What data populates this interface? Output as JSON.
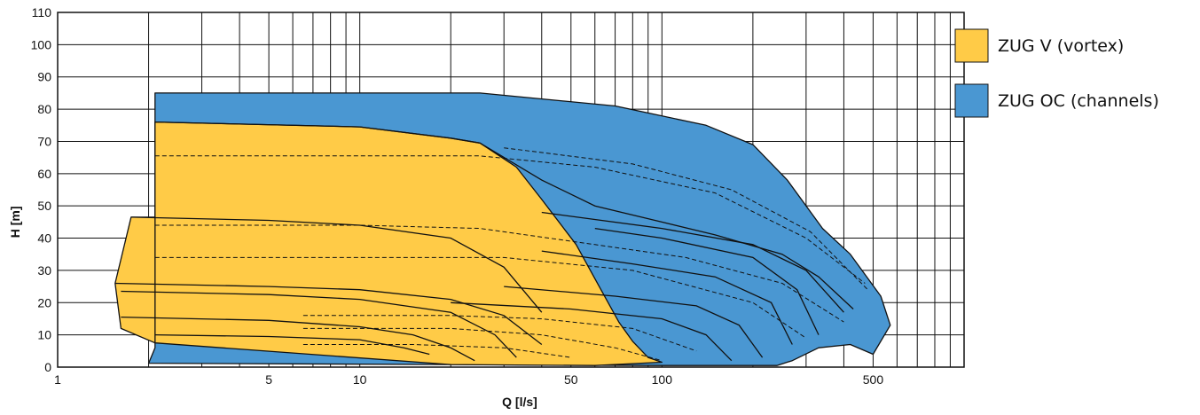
{
  "chart_data": {
    "type": "area",
    "title": "",
    "xlabel": "Q [l/s]",
    "ylabel": "H [m]",
    "x_scale": "log",
    "xlim": [
      1,
      1000
    ],
    "ylim": [
      0,
      110
    ],
    "x_tick_labels": [
      "1",
      "5",
      "10",
      "50",
      "100",
      "500"
    ],
    "x_tick_values": [
      1,
      5,
      10,
      50,
      100,
      500
    ],
    "y_ticks": [
      0,
      10,
      20,
      30,
      40,
      50,
      60,
      70,
      80,
      90,
      100,
      110
    ],
    "grid": true,
    "legend_position": "right",
    "colors": {
      "vortex": "#ffcb47",
      "channels": "#4a97d2",
      "outline": "#111111"
    },
    "series": [
      {
        "name": "ZUG OC (channels)",
        "color": "#4a97d2",
        "regions": [
          [
            [
              2.1,
              85
            ],
            [
              25,
              85
            ],
            [
              70,
              81
            ],
            [
              140,
              75
            ],
            [
              200,
              69
            ],
            [
              260,
              58
            ],
            [
              340,
              43
            ],
            [
              420,
              35
            ],
            [
              530,
              22
            ],
            [
              570,
              13
            ],
            [
              500,
              4
            ],
            [
              420,
              7
            ],
            [
              330,
              6
            ],
            [
              270,
              2
            ],
            [
              240,
              0.5
            ],
            [
              100,
              0.5
            ],
            [
              2,
              1.2
            ],
            [
              2.1,
              6
            ]
          ]
        ]
      },
      {
        "name": "ZUG V (vortex)",
        "color": "#ffcb47",
        "regions": [
          [
            [
              2.1,
              76
            ],
            [
              10,
              74.5
            ],
            [
              20,
              71
            ],
            [
              25,
              69.5
            ],
            [
              33,
              62
            ],
            [
              40,
              52
            ],
            [
              52,
              38
            ],
            [
              62,
              25
            ],
            [
              72,
              14
            ],
            [
              80,
              8
            ],
            [
              90,
              3
            ],
            [
              100,
              1.5
            ],
            [
              60,
              0.5
            ],
            [
              20,
              0.8
            ],
            [
              2.1,
              7.5
            ]
          ],
          [
            [
              1.55,
              26
            ],
            [
              1.75,
              46.5
            ],
            [
              2.1,
              46.5
            ],
            [
              2.1,
              7.5
            ],
            [
              1.62,
              12
            ]
          ]
        ]
      }
    ],
    "curves_solid": [
      [
        [
          2.1,
          76
        ],
        [
          10,
          74.5
        ],
        [
          20,
          71
        ],
        [
          25,
          69.5
        ]
      ],
      [
        [
          1.75,
          46.5
        ],
        [
          5,
          45.5
        ],
        [
          10,
          44
        ],
        [
          20,
          40
        ],
        [
          30,
          31
        ],
        [
          40,
          17
        ]
      ],
      [
        [
          1.55,
          26
        ],
        [
          5,
          25
        ],
        [
          10,
          24
        ],
        [
          20,
          21
        ],
        [
          30,
          16
        ],
        [
          40,
          7
        ]
      ],
      [
        [
          1.62,
          23.5
        ],
        [
          5,
          22.5
        ],
        [
          10,
          21
        ],
        [
          20,
          17
        ],
        [
          28,
          10
        ],
        [
          33,
          3
        ]
      ],
      [
        [
          1.62,
          15.5
        ],
        [
          5,
          14.5
        ],
        [
          10,
          12.5
        ],
        [
          15,
          10
        ],
        [
          20,
          6
        ],
        [
          24,
          2
        ]
      ],
      [
        [
          2.1,
          10
        ],
        [
          5,
          9.5
        ],
        [
          10,
          8.5
        ],
        [
          14,
          6
        ],
        [
          17,
          4
        ]
      ],
      [
        [
          25,
          69.5
        ],
        [
          40,
          58
        ],
        [
          60,
          50
        ],
        [
          100,
          45
        ],
        [
          150,
          41
        ],
        [
          250,
          35
        ],
        [
          330,
          28
        ],
        [
          430,
          18
        ]
      ],
      [
        [
          40,
          48
        ],
        [
          100,
          43
        ],
        [
          200,
          38
        ],
        [
          300,
          30
        ],
        [
          400,
          17
        ]
      ],
      [
        [
          60,
          43
        ],
        [
          100,
          40
        ],
        [
          200,
          34
        ],
        [
          280,
          24
        ],
        [
          330,
          10
        ]
      ],
      [
        [
          40,
          36
        ],
        [
          80,
          32
        ],
        [
          150,
          28
        ],
        [
          230,
          20
        ],
        [
          270,
          7
        ]
      ],
      [
        [
          30,
          25
        ],
        [
          70,
          22
        ],
        [
          130,
          19
        ],
        [
          180,
          13
        ],
        [
          215,
          3
        ]
      ],
      [
        [
          20,
          20
        ],
        [
          50,
          18
        ],
        [
          100,
          15
        ],
        [
          140,
          10
        ],
        [
          170,
          2
        ]
      ]
    ],
    "curves_dashed": [
      [
        [
          2.1,
          65.5
        ],
        [
          10,
          65.5
        ],
        [
          25,
          65.5
        ],
        [
          60,
          62
        ],
        [
          150,
          54
        ],
        [
          300,
          40
        ],
        [
          470,
          26
        ]
      ],
      [
        [
          30,
          68
        ],
        [
          80,
          63
        ],
        [
          170,
          55
        ],
        [
          310,
          42
        ],
        [
          480,
          24
        ]
      ],
      [
        [
          2.1,
          44
        ],
        [
          10,
          44
        ],
        [
          25,
          43
        ],
        [
          60,
          38
        ],
        [
          120,
          34
        ],
        [
          250,
          26
        ],
        [
          400,
          14
        ]
      ],
      [
        [
          2.1,
          34
        ],
        [
          10,
          34
        ],
        [
          30,
          34
        ],
        [
          80,
          30
        ],
        [
          200,
          20
        ],
        [
          300,
          9
        ]
      ],
      [
        [
          6.5,
          16
        ],
        [
          20,
          16
        ],
        [
          40,
          15
        ],
        [
          80,
          12
        ],
        [
          130,
          5
        ]
      ],
      [
        [
          6.5,
          12
        ],
        [
          20,
          12
        ],
        [
          40,
          10
        ],
        [
          70,
          6
        ],
        [
          100,
          2
        ]
      ],
      [
        [
          6.5,
          7
        ],
        [
          15,
          7
        ],
        [
          30,
          6
        ],
        [
          50,
          3
        ]
      ]
    ]
  }
}
